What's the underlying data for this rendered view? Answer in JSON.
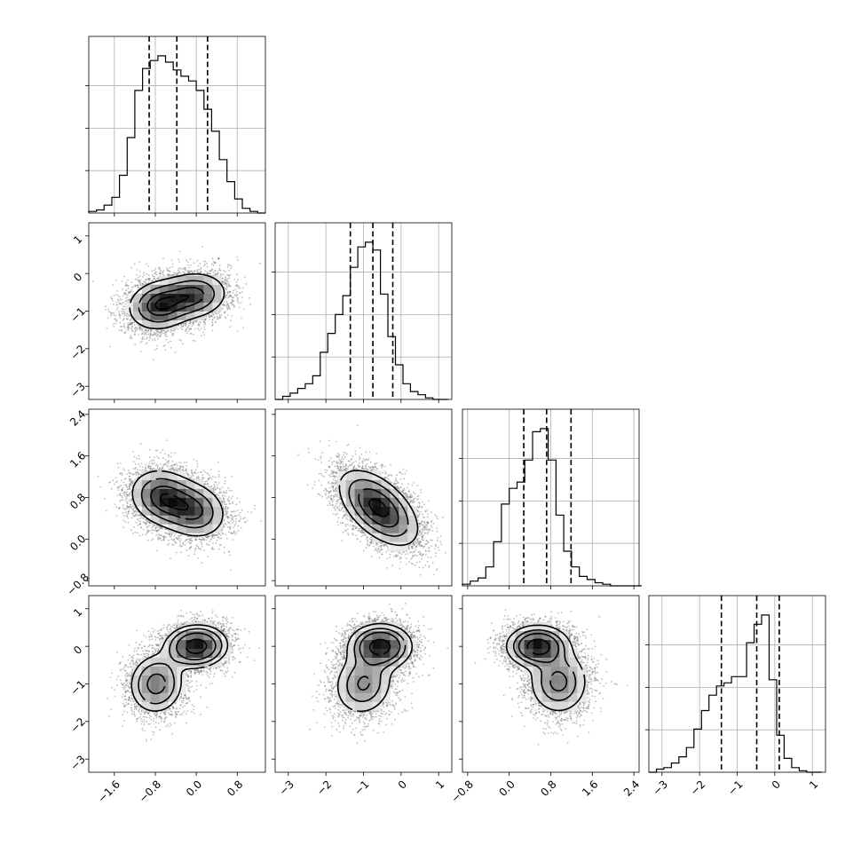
{
  "chart_data": {
    "type": "corner",
    "parameters": 4,
    "grid": true,
    "quantiles": [
      0.16,
      0.5,
      0.84
    ],
    "marginals": [
      {
        "index": 0,
        "range": [
          -2.1,
          1.35
        ],
        "bin_edges": [
          -2.1,
          -1.95,
          -1.8,
          -1.65,
          -1.5,
          -1.35,
          -1.2,
          -1.05,
          -0.9,
          -0.75,
          -0.6,
          -0.45,
          -0.3,
          -0.15,
          0.0,
          0.15,
          0.3,
          0.45,
          0.6,
          0.75,
          0.9,
          1.05,
          1.2,
          1.35
        ],
        "counts": [
          0.01,
          0.02,
          0.05,
          0.1,
          0.24,
          0.48,
          0.78,
          0.92,
          0.97,
          1.0,
          0.96,
          0.91,
          0.87,
          0.84,
          0.78,
          0.66,
          0.52,
          0.34,
          0.2,
          0.09,
          0.03,
          0.01,
          0.0
        ],
        "quantile_values": [
          -0.92,
          -0.38,
          0.22
        ],
        "tick_labels": [
          "−1.6",
          "−0.8",
          "0.0",
          "0.8"
        ],
        "ticks": [
          -1.6,
          -0.8,
          0.0,
          0.8
        ]
      },
      {
        "index": 1,
        "range": [
          -3.35,
          1.35
        ],
        "bin_edges": [
          -3.35,
          -3.15,
          -2.95,
          -2.75,
          -2.55,
          -2.35,
          -2.15,
          -1.95,
          -1.75,
          -1.55,
          -1.35,
          -1.15,
          -0.95,
          -0.75,
          -0.55,
          -0.35,
          -0.15,
          0.05,
          0.25,
          0.45,
          0.65,
          0.85,
          1.05,
          1.25
        ],
        "counts": [
          0.0,
          0.02,
          0.04,
          0.07,
          0.1,
          0.15,
          0.3,
          0.42,
          0.54,
          0.66,
          0.84,
          0.97,
          1.0,
          0.95,
          0.67,
          0.4,
          0.22,
          0.1,
          0.05,
          0.03,
          0.01,
          0.0,
          0.0
        ],
        "quantile_values": [
          -1.35,
          -0.75,
          -0.22
        ],
        "tick_labels": [
          "−3",
          "−2",
          "−1",
          "0",
          "1"
        ],
        "ticks": [
          -3,
          -2,
          -1,
          0,
          1
        ]
      },
      {
        "index": 2,
        "range": [
          -0.9,
          2.5
        ],
        "bin_edges": [
          -0.9,
          -0.75,
          -0.6,
          -0.45,
          -0.3,
          -0.15,
          0.0,
          0.15,
          0.3,
          0.45,
          0.6,
          0.75,
          0.9,
          1.05,
          1.2,
          1.35,
          1.5,
          1.65,
          1.8,
          1.95,
          2.1,
          2.25,
          2.4,
          2.55
        ],
        "counts": [
          0.01,
          0.03,
          0.05,
          0.12,
          0.28,
          0.52,
          0.62,
          0.66,
          0.8,
          0.98,
          1.0,
          0.8,
          0.45,
          0.22,
          0.12,
          0.06,
          0.04,
          0.02,
          0.01,
          0.0,
          0.0,
          0.0,
          0.0
        ],
        "quantile_values": [
          0.28,
          0.72,
          1.19
        ],
        "tick_labels": [
          "−0.8",
          "0.0",
          "0.8",
          "1.6",
          "2.4"
        ],
        "ticks": [
          -0.8,
          0.0,
          0.8,
          1.6,
          2.4
        ]
      },
      {
        "index": 3,
        "range": [
          -3.35,
          1.35
        ],
        "bin_edges": [
          -3.35,
          -3.15,
          -2.95,
          -2.75,
          -2.55,
          -2.35,
          -2.15,
          -1.95,
          -1.75,
          -1.55,
          -1.35,
          -1.15,
          -0.95,
          -0.75,
          -0.55,
          -0.35,
          -0.15,
          0.05,
          0.25,
          0.45,
          0.65,
          0.85,
          1.05,
          1.25
        ],
        "counts": [
          0.0,
          0.02,
          0.03,
          0.06,
          0.1,
          0.16,
          0.28,
          0.4,
          0.5,
          0.56,
          0.58,
          0.62,
          0.62,
          0.84,
          0.96,
          1.02,
          0.6,
          0.24,
          0.09,
          0.03,
          0.01,
          0.0,
          0.0
        ],
        "quantile_values": [
          -1.42,
          -0.48,
          0.12
        ],
        "tick_labels": [
          "−3",
          "−2",
          "−1",
          "0",
          "1"
        ],
        "ticks": [
          -3,
          -2,
          -1,
          0,
          1
        ]
      }
    ],
    "y_tick_labels": {
      "1": [
        "1",
        "0",
        "−1",
        "−2",
        "−3"
      ],
      "2": [
        "2.4",
        "1.6",
        "0.8",
        "0.0",
        "−0.8"
      ],
      "3": [
        "1",
        "0",
        "−1",
        "−2",
        "−3"
      ]
    },
    "joint_panels": [
      {
        "x_param": 0,
        "y_param": 1,
        "modes": [
          {
            "x": -0.72,
            "y": -0.85,
            "sx": 0.32,
            "sy": 0.34,
            "w": 1.0,
            "rho": 0.1
          },
          {
            "x": -0.05,
            "y": -0.58,
            "sx": 0.34,
            "sy": 0.32,
            "w": 0.9,
            "rho": 0.1
          }
        ]
      },
      {
        "x_param": 0,
        "y_param": 2,
        "modes": [
          {
            "x": -0.65,
            "y": 0.8,
            "sx": 0.33,
            "sy": 0.28,
            "w": 1.0,
            "rho": -0.15
          },
          {
            "x": -0.05,
            "y": 0.55,
            "sx": 0.33,
            "sy": 0.28,
            "w": 0.85,
            "rho": -0.15
          }
        ]
      },
      {
        "x_param": 0,
        "y_param": 3,
        "modes": [
          {
            "x": -0.0,
            "y": 0.0,
            "sx": 0.3,
            "sy": 0.28,
            "w": 1.0,
            "rho": 0.05
          },
          {
            "x": -0.78,
            "y": -1.0,
            "sx": 0.28,
            "sy": 0.42,
            "w": 0.55,
            "rho": 0.05
          }
        ]
      },
      {
        "x_param": 1,
        "y_param": 2,
        "modes": [
          {
            "x": -0.6,
            "y": 0.6,
            "sx": 0.52,
            "sy": 0.36,
            "w": 1.0,
            "rho": -0.55
          }
        ]
      },
      {
        "x_param": 1,
        "y_param": 3,
        "modes": [
          {
            "x": -0.55,
            "y": 0.0,
            "sx": 0.42,
            "sy": 0.3,
            "w": 1.0,
            "rho": 0.0
          },
          {
            "x": -1.0,
            "y": -1.0,
            "sx": 0.42,
            "sy": 0.45,
            "w": 0.5,
            "rho": 0.1
          }
        ]
      },
      {
        "x_param": 2,
        "y_param": 3,
        "modes": [
          {
            "x": 0.55,
            "y": 0.0,
            "sx": 0.3,
            "sy": 0.28,
            "w": 1.0,
            "rho": 0.0
          },
          {
            "x": 0.95,
            "y": -0.95,
            "sx": 0.3,
            "sy": 0.45,
            "w": 0.55,
            "rho": 0.0
          }
        ]
      }
    ],
    "contour_levels": [
      0.118,
      0.393,
      0.675,
      0.865
    ]
  }
}
